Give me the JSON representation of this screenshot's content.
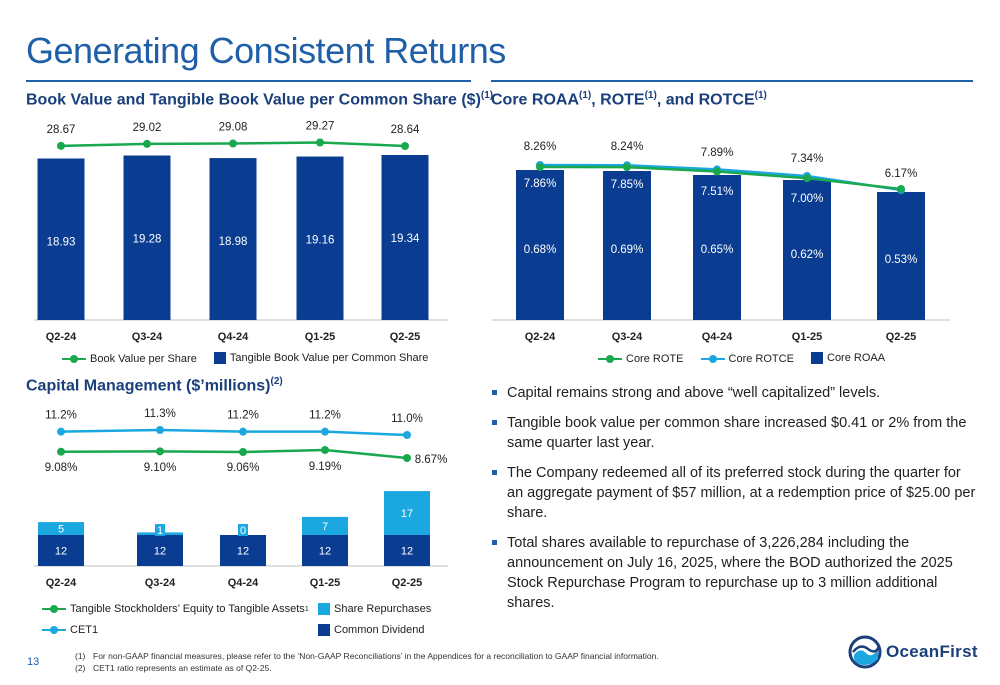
{
  "title": "Generating Consistent Returns",
  "page_number": "13",
  "sections": {
    "bv": {
      "title": "Book Value and Tangible Book Value per Common Share ($)",
      "sup": "(1)"
    },
    "roa": {
      "t1": "Core ROAA",
      "s1": "(1)",
      "t2": ", ROTE",
      "s2": "(1)",
      "t3": ", and ROTCE",
      "s3": "(1)"
    },
    "cap": {
      "title": "Capital Management ($’millions)",
      "sup": "(2)"
    }
  },
  "legends": {
    "bv": [
      "Book Value per Share",
      "Tangible Book Value per Common Share"
    ],
    "roa": [
      "Core ROTE",
      "Core ROTCE",
      "Core ROAA"
    ],
    "cap": [
      "Tangible Stockholders’ Equity to Tangible Assets",
      "Share Repurchases",
      "CET1",
      "Common Dividend"
    ],
    "cap_sup": "1"
  },
  "colors": {
    "navy": "#0a3d91",
    "light_blue": "#1ba7e0",
    "green": "#1aa84f",
    "title_blue": "#1f5fa8"
  },
  "bullets": [
    "Capital remains strong and above “well capitalized” levels.",
    "Tangible book value per common share increased $0.41 or 2% from the same quarter last year.",
    "The Company redeemed all of its preferred stock during the quarter for an aggregate payment of $57 million, at a redemption price of $25.00 per share.",
    "Total shares available to repurchase of 3,226,284 including the announcement on July 16, 2025, where the BOD authorized the 2025 Stock Repurchase Program to repurchase up to 3 million additional shares."
  ],
  "footnotes": [
    {
      "n": "(1)",
      "text": "For non-GAAP financial measures, please refer to the ‘Non-GAAP Reconciliations’ in the Appendices for a reconciliation to GAAP financial information."
    },
    {
      "n": "(2)",
      "text": "CET1 ratio represents an estimate as of Q2-25."
    }
  ],
  "logo": {
    "text": "OceanFirst",
    "icon": "oceanfirst-logo-icon"
  },
  "chart_data": [
    {
      "type": "bar",
      "title": "Book Value and Tangible Book Value per Common Share ($)",
      "categories": [
        "Q2-24",
        "Q3-24",
        "Q4-24",
        "Q1-25",
        "Q2-25"
      ],
      "series": [
        {
          "name": "Tangible Book Value per Common Share",
          "kind": "bar",
          "values": [
            18.93,
            19.28,
            18.98,
            19.16,
            19.34
          ],
          "labels": [
            "18.93",
            "19.28",
            "18.98",
            "19.16",
            "19.34"
          ]
        },
        {
          "name": "Book Value per Share",
          "kind": "line",
          "values": [
            28.67,
            29.02,
            29.08,
            29.27,
            28.64
          ],
          "labels": [
            "28.67",
            "29.02",
            "29.08",
            "29.27",
            "28.64"
          ]
        }
      ]
    },
    {
      "type": "bar",
      "title": "Core ROAA, ROTE, and ROTCE",
      "categories": [
        "Q2-24",
        "Q3-24",
        "Q4-24",
        "Q1-25",
        "Q2-25"
      ],
      "series": [
        {
          "name": "Core ROAA",
          "kind": "bar",
          "values": [
            0.68,
            0.69,
            0.65,
            0.62,
            0.53
          ],
          "labels": [
            "0.68%",
            "0.69%",
            "0.65%",
            "0.62%",
            "0.53%"
          ]
        },
        {
          "name": "Core ROTE",
          "kind": "line",
          "values": [
            7.86,
            7.85,
            7.51,
            7.0,
            6.17
          ],
          "labels": [
            "7.86%",
            "7.85%",
            "7.51%",
            "7.00%",
            ""
          ]
        },
        {
          "name": "Core ROTCE",
          "kind": "line",
          "values": [
            8.26,
            8.24,
            7.89,
            7.34,
            6.17
          ],
          "labels": [
            "8.26%",
            "8.24%",
            "7.89%",
            "7.34%",
            "6.17%"
          ]
        }
      ]
    },
    {
      "type": "bar",
      "title": "Capital Management ($’millions)",
      "categories": [
        "Q2-24",
        "Q3-24",
        "Q4-24",
        "Q1-25",
        "Q2-25"
      ],
      "series": [
        {
          "name": "Common Dividend",
          "kind": "stacked-bar",
          "values": [
            12,
            12,
            12,
            12,
            12
          ]
        },
        {
          "name": "Share Repurchases",
          "kind": "stacked-bar",
          "values": [
            5,
            1,
            0,
            7,
            17
          ]
        },
        {
          "name": "CET1",
          "kind": "line",
          "values": [
            11.2,
            11.3,
            11.2,
            11.2,
            11.0
          ],
          "labels": [
            "11.2%",
            "11.3%",
            "11.2%",
            "11.2%",
            "11.0%"
          ]
        },
        {
          "name": "Tangible Stockholders’ Equity to Tangible Assets",
          "kind": "line",
          "values": [
            9.08,
            9.1,
            9.06,
            9.19,
            8.67
          ],
          "labels": [
            "9.08%",
            "9.10%",
            "9.06%",
            "9.19%",
            "8.67%"
          ]
        }
      ]
    }
  ]
}
